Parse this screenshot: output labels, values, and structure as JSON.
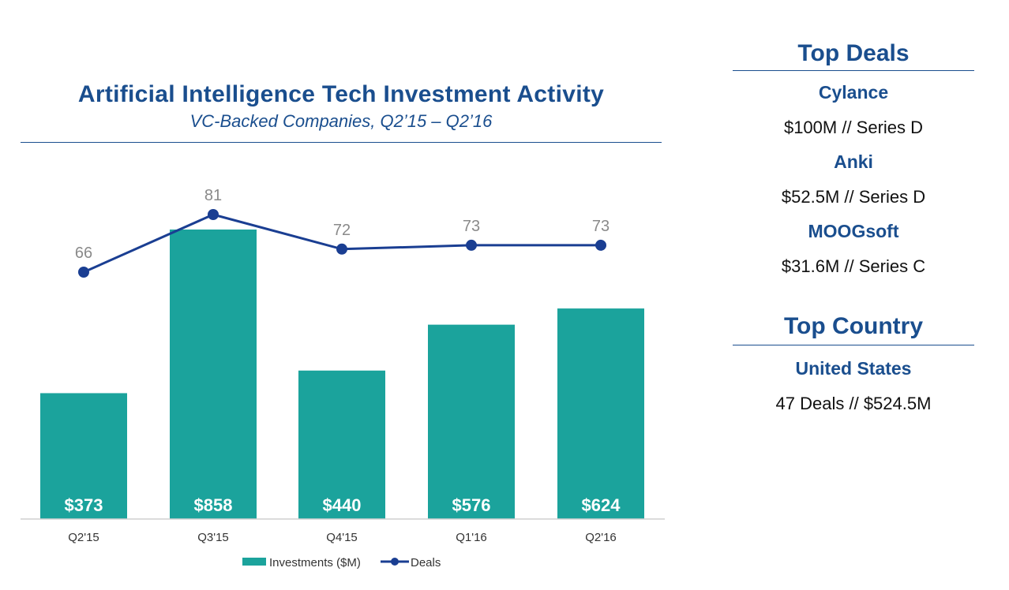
{
  "chart_data": {
    "type": "bar",
    "title": "Artificial Intelligence Tech Investment Activity",
    "subtitle": "VC-Backed Companies, Q2’15 – Q2’16",
    "categories": [
      "Q2'15",
      "Q3'15",
      "Q4'15",
      "Q1'16",
      "Q2'16"
    ],
    "series": [
      {
        "name": "Investments ($M)",
        "type": "bar",
        "values": [
          373,
          858,
          440,
          576,
          624
        ],
        "labels": [
          "$373",
          "$858",
          "$440",
          "$576",
          "$624"
        ],
        "color": "#1ba39c"
      },
      {
        "name": "Deals",
        "type": "line",
        "values": [
          66,
          81,
          72,
          73,
          73
        ],
        "labels": [
          "66",
          "81",
          "72",
          "73",
          "73"
        ],
        "color": "#1a3e92"
      }
    ],
    "xlabel": "",
    "ylabel": "",
    "legend": "bottom-center",
    "grid": false
  },
  "colors": {
    "heading": "#1a4e8e",
    "bar": "#1ba39c",
    "line": "#1a3e92",
    "deal_label": "#8a8a8a"
  },
  "side_panel": {
    "top_deals": {
      "heading": "Top Deals",
      "items": [
        {
          "name": "Cylance",
          "detail": "$100M // Series D"
        },
        {
          "name": "Anki",
          "detail": "$52.5M // Series D"
        },
        {
          "name": "MOOGsoft",
          "detail": "$31.6M // Series C"
        }
      ]
    },
    "top_country": {
      "heading": "Top Country",
      "name": "United States",
      "detail": "47 Deals // $524.5M"
    }
  }
}
